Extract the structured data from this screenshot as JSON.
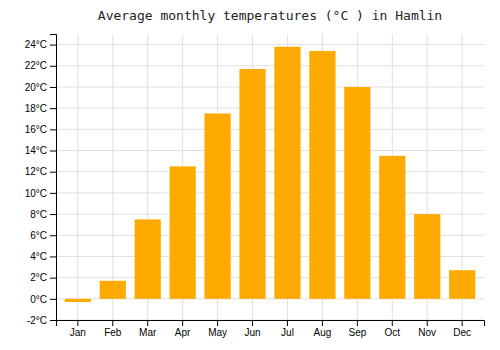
{
  "chart_data": {
    "type": "bar",
    "title": "Average monthly temperatures (°C ) in Hamlin",
    "categories": [
      "Jan",
      "Feb",
      "Mar",
      "Apr",
      "May",
      "Jun",
      "Jul",
      "Aug",
      "Sep",
      "Oct",
      "Nov",
      "Dec"
    ],
    "values": [
      -0.3,
      1.7,
      7.5,
      12.5,
      17.5,
      21.7,
      23.8,
      23.4,
      20.0,
      13.5,
      8.0,
      2.7
    ],
    "color": "#FFAA00",
    "ylim": [
      -2,
      25
    ],
    "yticks": [
      {
        "value": -2,
        "label": "-2°C"
      },
      {
        "value": 0,
        "label": "0°C"
      },
      {
        "value": 2,
        "label": "2°C"
      },
      {
        "value": 4,
        "label": "4°C"
      },
      {
        "value": 6,
        "label": "6°C"
      },
      {
        "value": 8,
        "label": "8°C"
      },
      {
        "value": 10,
        "label": "10°C"
      },
      {
        "value": 12,
        "label": "12°C"
      },
      {
        "value": 14,
        "label": "14°C"
      },
      {
        "value": 16,
        "label": "16°C"
      },
      {
        "value": 18,
        "label": "18°C"
      },
      {
        "value": 20,
        "label": "20°C"
      },
      {
        "value": 22,
        "label": "22°C"
      },
      {
        "value": 24,
        "label": "24°C"
      }
    ],
    "grid": true
  }
}
